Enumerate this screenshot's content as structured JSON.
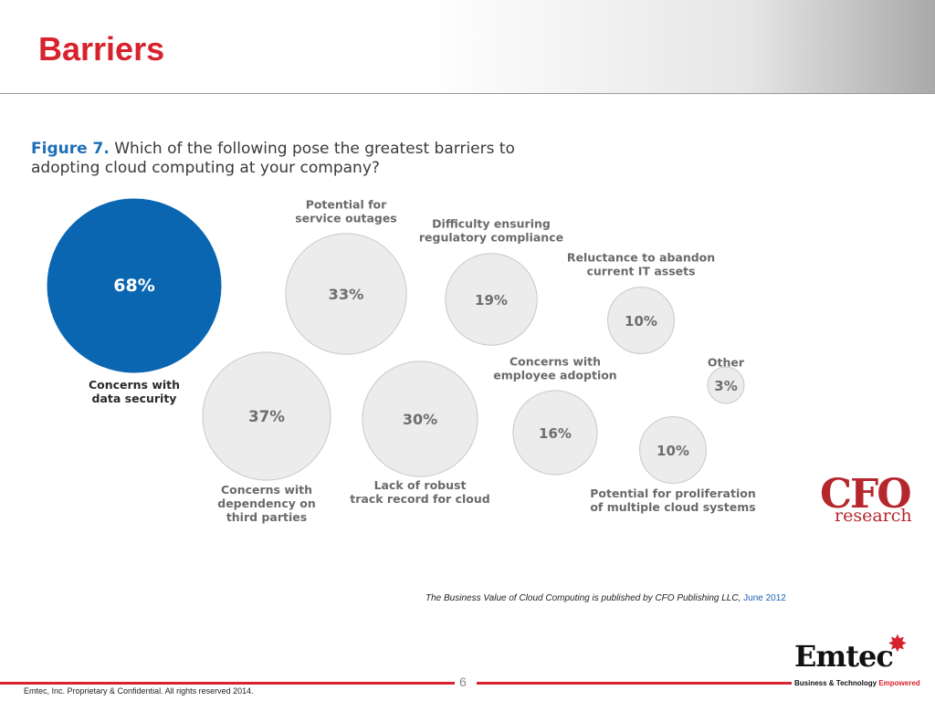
{
  "slide": {
    "title": "Barriers",
    "page_number": "6",
    "copyright": "Emtec, Inc. Proprietary & Confidential. All rights reserved 2014.",
    "source_text": "The Business Value of Cloud Computing is published by CFO Publishing LLC,",
    "source_date": "June 2012"
  },
  "figure": {
    "number": "Figure 7.",
    "question": "Which of the following pose the greatest barriers to adopting cloud computing at your company?"
  },
  "logos": {
    "cfo": "CFO",
    "research": "research",
    "emtec": "Emtec",
    "tagline_main": "Business & Technology",
    "tagline_emph": "Empowered"
  },
  "colors": {
    "title_red": "#d7232e",
    "highlight_blue": "#0b66b2",
    "bubble_gray": "#ececec",
    "bubble_stroke": "#c8c8c8",
    "figure_blue": "#1f6fb8"
  },
  "chart_data": {
    "type": "bubble",
    "title": "Which of the following pose the greatest barriers to adopting cloud computing at your company?",
    "unit": "%",
    "items": [
      {
        "label": [
          "Concerns with",
          "data security"
        ],
        "value": 68,
        "highlight": true
      },
      {
        "label": [
          "Concerns with",
          "dependency on",
          "third parties"
        ],
        "value": 37,
        "highlight": false
      },
      {
        "label": [
          "Potential for",
          "service outages"
        ],
        "value": 33,
        "highlight": false
      },
      {
        "label": [
          "Lack of robust",
          "track record for cloud"
        ],
        "value": 30,
        "highlight": false
      },
      {
        "label": [
          "Difficulty ensuring",
          "regulatory compliance"
        ],
        "value": 19,
        "highlight": false
      },
      {
        "label": [
          "Concerns with",
          "employee adoption"
        ],
        "value": 16,
        "highlight": false
      },
      {
        "label": [
          "Reluctance to abandon",
          "current IT assets"
        ],
        "value": 10,
        "highlight": false
      },
      {
        "label": [
          "Potential for proliferation",
          "of multiple cloud systems"
        ],
        "value": 10,
        "highlight": false
      },
      {
        "label": [
          "Other"
        ],
        "value": 3,
        "highlight": false
      }
    ]
  }
}
